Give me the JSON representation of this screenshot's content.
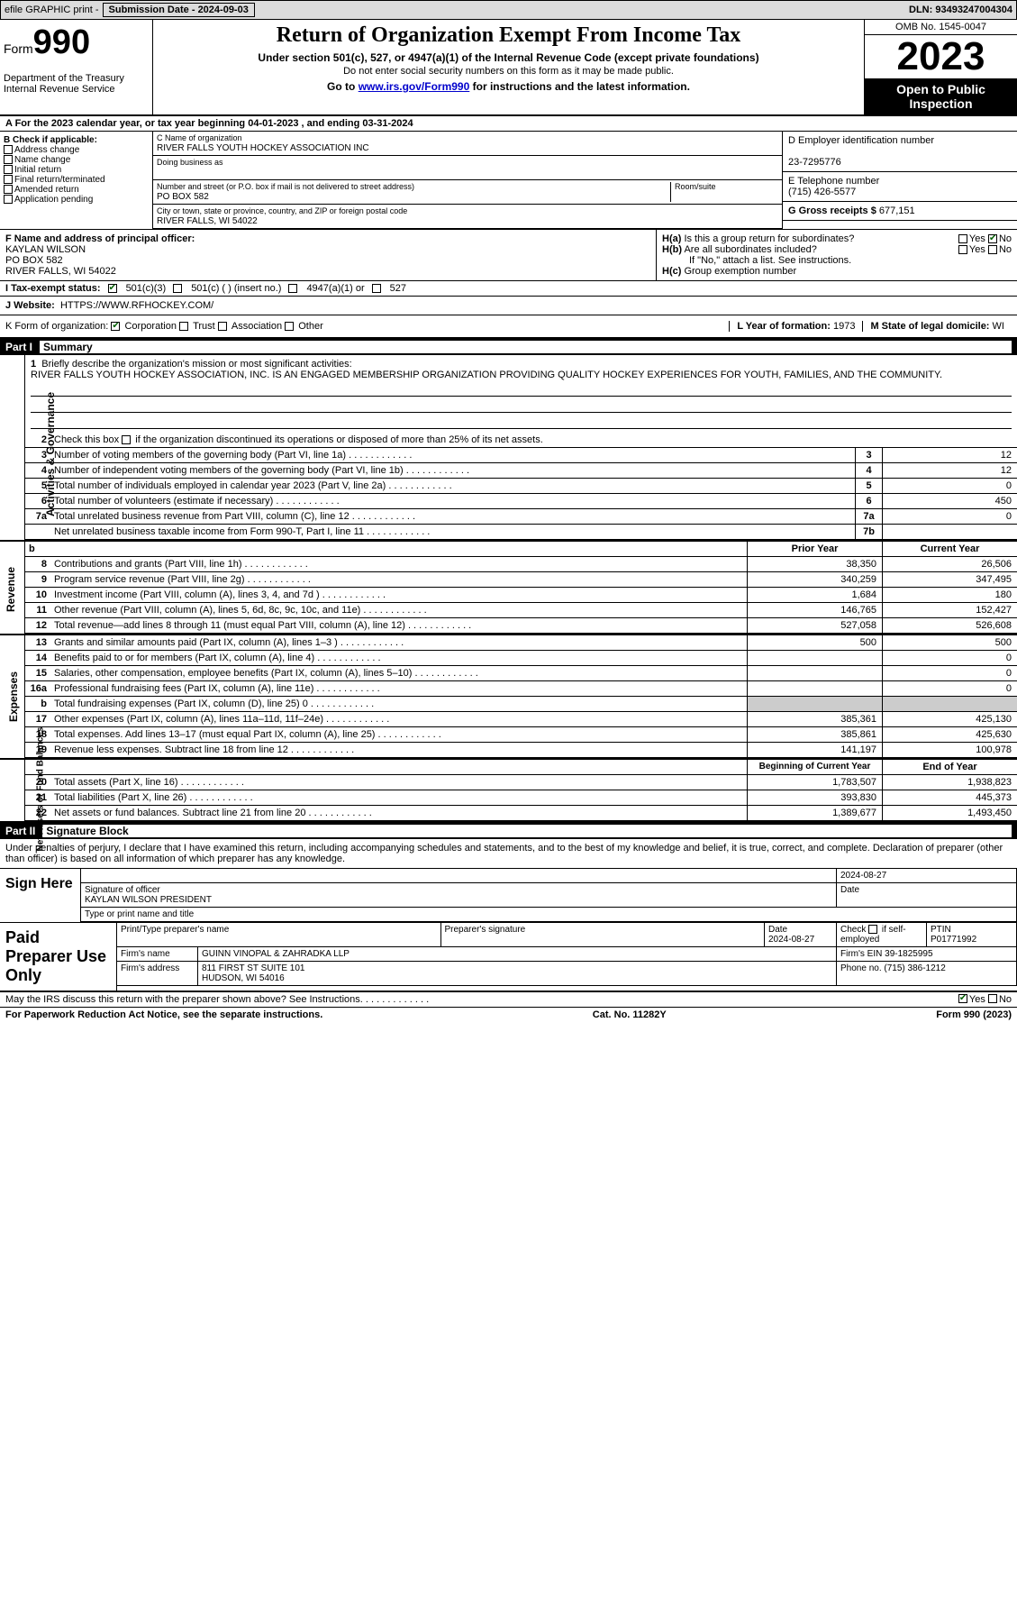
{
  "topbar": {
    "efile": "efile GRAPHIC print -",
    "subLabel": "Submission Date - ",
    "subDate": "2024-09-03",
    "dlnLabel": "DLN:",
    "dln": "93493247004304"
  },
  "header": {
    "formWord": "Form",
    "formNum": "990",
    "dept": "Department of the Treasury\nInternal Revenue Service",
    "title": "Return of Organization Exempt From Income Tax",
    "sub1": "Under section 501(c), 527, or 4947(a)(1) of the Internal Revenue Code (except private foundations)",
    "sub2": "Do not enter social security numbers on this form as it may be made public.",
    "sub3a": "Go to ",
    "sub3link": "www.irs.gov/Form990",
    "sub3b": " for instructions and the latest information.",
    "omb": "OMB No. 1545-0047",
    "year": "2023",
    "inspection": "Open to Public Inspection"
  },
  "calendar": {
    "a": "A For the 2023 calendar year, or tax year beginning ",
    "begin": "04-01-2023",
    "mid": "   , and ending ",
    "end": "03-31-2024"
  },
  "boxB": {
    "title": "B Check if applicable:",
    "items": [
      "Address change",
      "Name change",
      "Initial return",
      "Final return/terminated",
      "Amended return",
      "Application pending"
    ]
  },
  "boxC": {
    "nameLbl": "C Name of organization",
    "name": "RIVER FALLS YOUTH HOCKEY ASSOCIATION INC",
    "dbaLbl": "Doing business as",
    "dba": "",
    "addrLbl": "Number and street (or P.O. box if mail is not delivered to street address)",
    "addr": "PO BOX 582",
    "roomLbl": "Room/suite",
    "cityLbl": "City or town, state or province, country, and ZIP or foreign postal code",
    "city": "RIVER FALLS, WI  54022"
  },
  "boxD": {
    "einLbl": "D Employer identification number",
    "ein": "23-7295776",
    "telLbl": "E Telephone number",
    "tel": "(715) 426-5577",
    "grossLbl": "G Gross receipts $",
    "gross": "677,151"
  },
  "boxF": {
    "lbl": "F Name and address of principal officer:",
    "name": "KAYLAN WILSON",
    "addr": "PO BOX 582",
    "city": "RIVER FALLS, WI  54022"
  },
  "boxH": {
    "ha": "H(a)  Is this a group return for subordinates?",
    "haYes": "Yes",
    "haNo": "No",
    "hb": "H(b)  Are all subordinates included?",
    "hbNote": "If \"No,\" attach a list. See instructions.",
    "hc": "H(c)  Group exemption number"
  },
  "taxExempt": {
    "lbl": "I   Tax-exempt status:",
    "opt1": "501(c)(3)",
    "opt2": "501(c) (  ) (insert no.)",
    "opt3": "4947(a)(1) or",
    "opt4": "527"
  },
  "website": {
    "lbl": "J   Website:",
    "url": "HTTPS://WWW.RFHOCKEY.COM/"
  },
  "kForm": {
    "lbl": "K Form of organization:",
    "opts": [
      "Corporation",
      "Trust",
      "Association",
      "Other"
    ],
    "lLbl": "L Year of formation:",
    "lVal": "1973",
    "mLbl": "M State of legal domicile:",
    "mVal": "WI"
  },
  "part1": {
    "bar": "Part I",
    "title": "Summary",
    "vlabels": [
      "Activities & Governance",
      "Revenue",
      "Expenses",
      "Net Assets or Fund Balances"
    ],
    "line1lbl": "Briefly describe the organization's mission or most significant activities:",
    "mission": "RIVER FALLS YOUTH HOCKEY ASSOCIATION, INC. IS AN ENGAGED MEMBERSHIP ORGANIZATION PROVIDING QUALITY HOCKEY EXPERIENCES FOR YOUTH, FAMILIES, AND THE COMMUNITY.",
    "line2": "Check this box        if the organization discontinued its operations or disposed of more than 25% of its net assets.",
    "govLines": [
      {
        "n": "3",
        "d": "Number of voting members of the governing body (Part VI, line 1a)",
        "tag": "3",
        "v": "12"
      },
      {
        "n": "4",
        "d": "Number of independent voting members of the governing body (Part VI, line 1b)",
        "tag": "4",
        "v": "12"
      },
      {
        "n": "5",
        "d": "Total number of individuals employed in calendar year 2023 (Part V, line 2a)",
        "tag": "5",
        "v": "0"
      },
      {
        "n": "6",
        "d": "Total number of volunteers (estimate if necessary)",
        "tag": "6",
        "v": "450"
      },
      {
        "n": "7a",
        "d": "Total unrelated business revenue from Part VIII, column (C), line 12",
        "tag": "7a",
        "v": "0"
      },
      {
        "n": "",
        "d": "Net unrelated business taxable income from Form 990-T, Part I, line 11",
        "tag": "7b",
        "v": ""
      }
    ],
    "yearHdr": {
      "b": "b",
      "prior": "Prior Year",
      "current": "Current Year"
    },
    "revLines": [
      {
        "n": "8",
        "d": "Contributions and grants (Part VIII, line 1h)",
        "p": "38,350",
        "c": "26,506"
      },
      {
        "n": "9",
        "d": "Program service revenue (Part VIII, line 2g)",
        "p": "340,259",
        "c": "347,495"
      },
      {
        "n": "10",
        "d": "Investment income (Part VIII, column (A), lines 3, 4, and 7d )",
        "p": "1,684",
        "c": "180"
      },
      {
        "n": "11",
        "d": "Other revenue (Part VIII, column (A), lines 5, 6d, 8c, 9c, 10c, and 11e)",
        "p": "146,765",
        "c": "152,427"
      },
      {
        "n": "12",
        "d": "Total revenue—add lines 8 through 11 (must equal Part VIII, column (A), line 12)",
        "p": "527,058",
        "c": "526,608"
      }
    ],
    "expLines": [
      {
        "n": "13",
        "d": "Grants and similar amounts paid (Part IX, column (A), lines 1–3 )",
        "p": "500",
        "c": "500"
      },
      {
        "n": "14",
        "d": "Benefits paid to or for members (Part IX, column (A), line 4)",
        "p": "",
        "c": "0"
      },
      {
        "n": "15",
        "d": "Salaries, other compensation, employee benefits (Part IX, column (A), lines 5–10)",
        "p": "",
        "c": "0"
      },
      {
        "n": "16a",
        "d": "Professional fundraising fees (Part IX, column (A), line 11e)",
        "p": "",
        "c": "0"
      },
      {
        "n": "b",
        "d": "Total fundraising expenses (Part IX, column (D), line 25) 0",
        "p": "GREY",
        "c": "GREY"
      },
      {
        "n": "17",
        "d": "Other expenses (Part IX, column (A), lines 11a–11d, 11f–24e)",
        "p": "385,361",
        "c": "425,130"
      },
      {
        "n": "18",
        "d": "Total expenses. Add lines 13–17 (must equal Part IX, column (A), line 25)",
        "p": "385,861",
        "c": "425,630"
      },
      {
        "n": "19",
        "d": "Revenue less expenses. Subtract line 18 from line 12",
        "p": "141,197",
        "c": "100,978"
      }
    ],
    "netHdr": {
      "prior": "Beginning of Current Year",
      "current": "End of Year"
    },
    "netLines": [
      {
        "n": "20",
        "d": "Total assets (Part X, line 16)",
        "p": "1,783,507",
        "c": "1,938,823"
      },
      {
        "n": "21",
        "d": "Total liabilities (Part X, line 26)",
        "p": "393,830",
        "c": "445,373"
      },
      {
        "n": "22",
        "d": "Net assets or fund balances. Subtract line 21 from line 20",
        "p": "1,389,677",
        "c": "1,493,450"
      }
    ]
  },
  "part2": {
    "bar": "Part II",
    "title": "Signature Block",
    "perjury": "Under penalties of perjury, I declare that I have examined this return, including accompanying schedules and statements, and to the best of my knowledge and belief, it is true, correct, and complete. Declaration of preparer (other than officer) is based on all information of which preparer has any knowledge."
  },
  "sign": {
    "lbl": "Sign Here",
    "sigLbl": "Signature of officer",
    "dateLbl": "Date",
    "date": "2024-08-27",
    "name": "KAYLAN WILSON  PRESIDENT",
    "typeLbl": "Type or print name and title"
  },
  "paid": {
    "lbl": "Paid Preparer Use Only",
    "r1": {
      "a": "Print/Type preparer's name",
      "b": "Preparer's signature",
      "c": "Date",
      "cval": "2024-08-27",
      "d": "Check         if self-employed",
      "e": "PTIN",
      "eval": "P01771992"
    },
    "r2": {
      "lbl": "Firm's name",
      "val": "GUINN VINOPAL & ZAHRADKA LLP",
      "einLbl": "Firm's EIN",
      "ein": "39-1825995"
    },
    "r3": {
      "lbl": "Firm's address",
      "val": "811 FIRST ST SUITE 101",
      "city": "HUDSON, WI  54016",
      "phLbl": "Phone no.",
      "ph": "(715) 386-1212"
    }
  },
  "discuss": {
    "q": "May the IRS discuss this return with the preparer shown above? See Instructions.",
    "yes": "Yes",
    "no": "No"
  },
  "footer": {
    "l": "For Paperwork Reduction Act Notice, see the separate instructions.",
    "m": "Cat. No. 11282Y",
    "r": "Form 990 (2023)"
  }
}
